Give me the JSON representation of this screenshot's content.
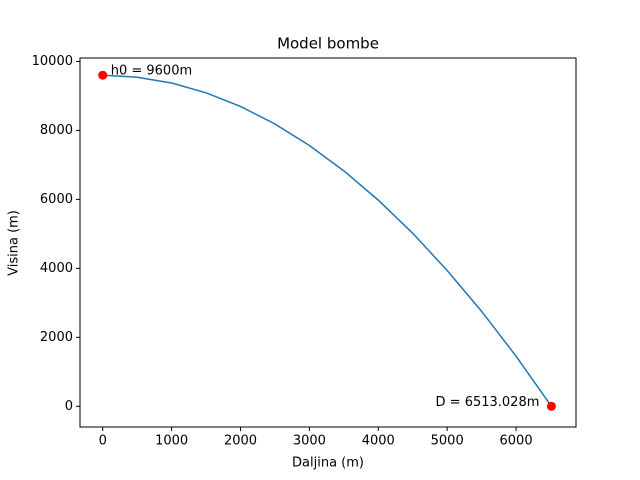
{
  "chart_data": {
    "type": "line",
    "title": "Model bombe",
    "xlabel": "Daljina (m)",
    "ylabel": "Visina (m)",
    "x": [
      0,
      500,
      1000,
      1500,
      2000,
      2500,
      3000,
      3500,
      4000,
      4500,
      5000,
      5500,
      6000,
      6513.028
    ],
    "values": [
      9600,
      9543,
      9374,
      9091,
      8695,
      8186,
      7563,
      6828,
      5979,
      5017,
      3938,
      2754,
      1453,
      0
    ],
    "color": "#1f77b4",
    "points": {
      "x": [
        0,
        6513.028
      ],
      "y": [
        9600,
        0
      ],
      "color": "#ff0000"
    },
    "annotations": [
      "h0 = 9600m",
      "D = 6513.028m"
    ],
    "xlim": [
      -330,
      6870
    ],
    "ylim": [
      -600,
      10100
    ],
    "xticks": [
      0,
      1000,
      2000,
      3000,
      4000,
      5000,
      6000
    ],
    "yticks": [
      0,
      2000,
      4000,
      6000,
      8000,
      10000
    ]
  }
}
